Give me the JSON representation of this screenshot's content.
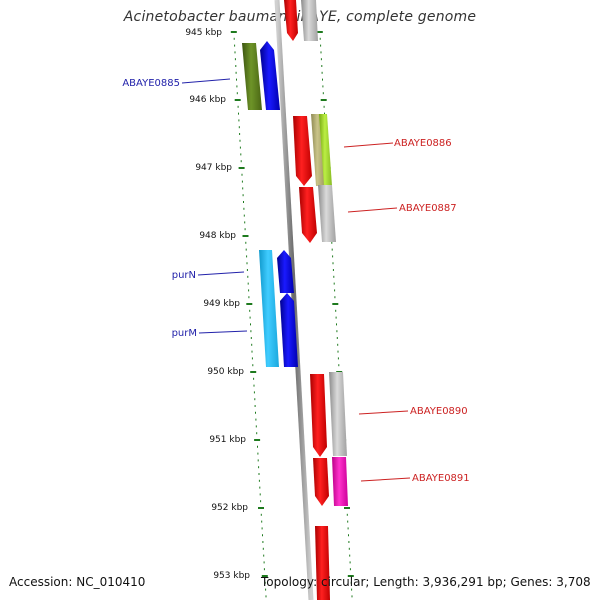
{
  "header": {
    "title": "Acinetobacter baumannii AYE, complete genome"
  },
  "footer": {
    "accession": "Accession: NC_010410",
    "topology": "Topology: circular; Length: 3,936,291 bp; Genes: 3,708"
  },
  "ruler": {
    "unit": "kbp",
    "labels": [
      "945 kbp",
      "946 kbp",
      "947 kbp",
      "948 kbp",
      "949 kbp",
      "950 kbp",
      "951 kbp",
      "952 kbp",
      "953 kbp"
    ]
  },
  "gene_labels": {
    "forward": [
      "ABAYE0885",
      "purN",
      "purM"
    ],
    "reverse": [
      "ABAYE0886",
      "ABAYE0887",
      "ABAYE0890",
      "ABAYE0891"
    ]
  },
  "colors": {
    "backbone": "#8a8a8a",
    "tick": "#1e7a1e",
    "forward_label": "#2222aa",
    "reverse_label": "#cc2222",
    "cds_blue": "#1010ee",
    "cds_cyan": "#22bbee",
    "cds_olive": "#5a7a1e",
    "cds_red": "#ee1111",
    "cds_grey": "#bbbbbb",
    "cds_lightgreen": "#99cc33",
    "cds_magenta": "#ee11aa"
  }
}
